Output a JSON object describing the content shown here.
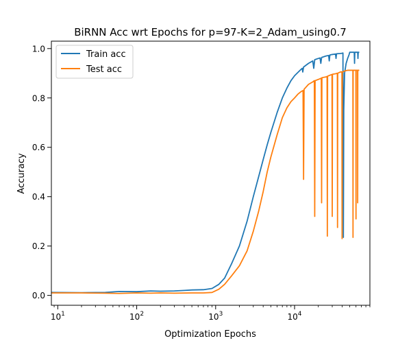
{
  "chart_data": {
    "type": "line",
    "title": "BiRNN Acc wrt Epochs for p=97-K=2_Adam_using0.7",
    "xlabel": "Optimization Epochs",
    "ylabel": "Accuracy",
    "x_scale": "log",
    "xlim": [
      8.3,
      90000
    ],
    "ylim": [
      -0.04,
      1.03
    ],
    "x_ticks": [
      {
        "value": 10,
        "base": "10",
        "exp": "1"
      },
      {
        "value": 100,
        "base": "10",
        "exp": "2"
      },
      {
        "value": 1000,
        "base": "10",
        "exp": "3"
      },
      {
        "value": 10000,
        "base": "10",
        "exp": "4"
      }
    ],
    "y_ticks": [
      {
        "value": 0.0,
        "label": "0.0"
      },
      {
        "value": 0.2,
        "label": "0.2"
      },
      {
        "value": 0.4,
        "label": "0.4"
      },
      {
        "value": 0.6,
        "label": "0.6"
      },
      {
        "value": 0.8,
        "label": "0.8"
      },
      {
        "value": 1.0,
        "label": "1.0"
      }
    ],
    "legend_position": "top-left",
    "series": [
      {
        "name": "Train acc",
        "color": "#1f77b4",
        "points": [
          [
            8.3,
            0.012
          ],
          [
            20,
            0.011
          ],
          [
            40,
            0.012
          ],
          [
            60,
            0.016
          ],
          [
            100,
            0.015
          ],
          [
            150,
            0.018
          ],
          [
            200,
            0.017
          ],
          [
            300,
            0.018
          ],
          [
            400,
            0.02
          ],
          [
            500,
            0.022
          ],
          [
            700,
            0.023
          ],
          [
            900,
            0.028
          ],
          [
            1100,
            0.045
          ],
          [
            1300,
            0.07
          ],
          [
            1600,
            0.13
          ],
          [
            2000,
            0.2
          ],
          [
            2500,
            0.3
          ],
          [
            3000,
            0.4
          ],
          [
            3500,
            0.48
          ],
          [
            4000,
            0.55
          ],
          [
            4500,
            0.61
          ],
          [
            5000,
            0.66
          ],
          [
            6000,
            0.74
          ],
          [
            7000,
            0.8
          ],
          [
            8000,
            0.84
          ],
          [
            9000,
            0.87
          ],
          [
            10000,
            0.89
          ],
          [
            12000,
            0.915
          ],
          [
            12500,
            0.92
          ],
          [
            12700,
            0.905
          ],
          [
            13000,
            0.925
          ],
          [
            15000,
            0.94
          ],
          [
            17000,
            0.95
          ],
          [
            17500,
            0.92
          ],
          [
            18000,
            0.955
          ],
          [
            20000,
            0.96
          ],
          [
            21000,
            0.962
          ],
          [
            21500,
            0.94
          ],
          [
            22000,
            0.964
          ],
          [
            25000,
            0.97
          ],
          [
            27000,
            0.972
          ],
          [
            27500,
            0.95
          ],
          [
            28000,
            0.974
          ],
          [
            30000,
            0.976
          ],
          [
            33000,
            0.978
          ],
          [
            33500,
            0.96
          ],
          [
            34000,
            0.979
          ],
          [
            38000,
            0.98
          ],
          [
            40000,
            0.981
          ],
          [
            41000,
            0.982
          ],
          [
            41500,
            0.235
          ],
          [
            42000,
            0.75
          ],
          [
            43000,
            0.9
          ],
          [
            45000,
            0.94
          ],
          [
            47000,
            0.96
          ],
          [
            49000,
            0.975
          ],
          [
            50000,
            0.985
          ],
          [
            55000,
            0.985
          ],
          [
            57000,
            0.985
          ],
          [
            57500,
            0.94
          ],
          [
            58000,
            0.985
          ],
          [
            63000,
            0.985
          ],
          [
            63500,
            0.96
          ],
          [
            64000,
            0.985
          ],
          [
            66000,
            0.985
          ]
        ]
      },
      {
        "name": "Test acc",
        "color": "#ff7f0e",
        "points": [
          [
            8.3,
            0.01
          ],
          [
            20,
            0.01
          ],
          [
            40,
            0.009
          ],
          [
            60,
            0.008
          ],
          [
            100,
            0.01
          ],
          [
            150,
            0.009
          ],
          [
            200,
            0.01
          ],
          [
            300,
            0.009
          ],
          [
            500,
            0.01
          ],
          [
            700,
            0.01
          ],
          [
            900,
            0.012
          ],
          [
            1100,
            0.025
          ],
          [
            1300,
            0.045
          ],
          [
            1600,
            0.08
          ],
          [
            2000,
            0.12
          ],
          [
            2500,
            0.18
          ],
          [
            3000,
            0.26
          ],
          [
            3500,
            0.34
          ],
          [
            4000,
            0.42
          ],
          [
            4500,
            0.5
          ],
          [
            5000,
            0.56
          ],
          [
            6000,
            0.65
          ],
          [
            7000,
            0.72
          ],
          [
            8000,
            0.76
          ],
          [
            9000,
            0.785
          ],
          [
            10000,
            0.8
          ],
          [
            11000,
            0.815
          ],
          [
            12000,
            0.825
          ],
          [
            12800,
            0.83
          ],
          [
            13000,
            0.47
          ],
          [
            13200,
            0.835
          ],
          [
            15000,
            0.855
          ],
          [
            17000,
            0.865
          ],
          [
            17800,
            0.87
          ],
          [
            18000,
            0.32
          ],
          [
            18200,
            0.87
          ],
          [
            20000,
            0.875
          ],
          [
            21800,
            0.88
          ],
          [
            22000,
            0.375
          ],
          [
            22200,
            0.882
          ],
          [
            25000,
            0.885
          ],
          [
            25800,
            0.887
          ],
          [
            26000,
            0.24
          ],
          [
            26200,
            0.888
          ],
          [
            28000,
            0.892
          ],
          [
            29800,
            0.895
          ],
          [
            30000,
            0.32
          ],
          [
            30200,
            0.896
          ],
          [
            33000,
            0.898
          ],
          [
            34800,
            0.9
          ],
          [
            35000,
            0.275
          ],
          [
            35200,
            0.9
          ],
          [
            38000,
            0.905
          ],
          [
            39800,
            0.906
          ],
          [
            40000,
            0.23
          ],
          [
            40200,
            0.905
          ],
          [
            44000,
            0.91
          ],
          [
            47000,
            0.912
          ],
          [
            50000,
            0.912
          ],
          [
            53000,
            0.912
          ],
          [
            54800,
            0.912
          ],
          [
            55000,
            0.235
          ],
          [
            55200,
            0.912
          ],
          [
            58000,
            0.912
          ],
          [
            59800,
            0.912
          ],
          [
            60000,
            0.31
          ],
          [
            60200,
            0.912
          ],
          [
            62800,
            0.912
          ],
          [
            63000,
            0.375
          ],
          [
            63200,
            0.912
          ],
          [
            66000,
            0.912
          ]
        ]
      }
    ]
  }
}
